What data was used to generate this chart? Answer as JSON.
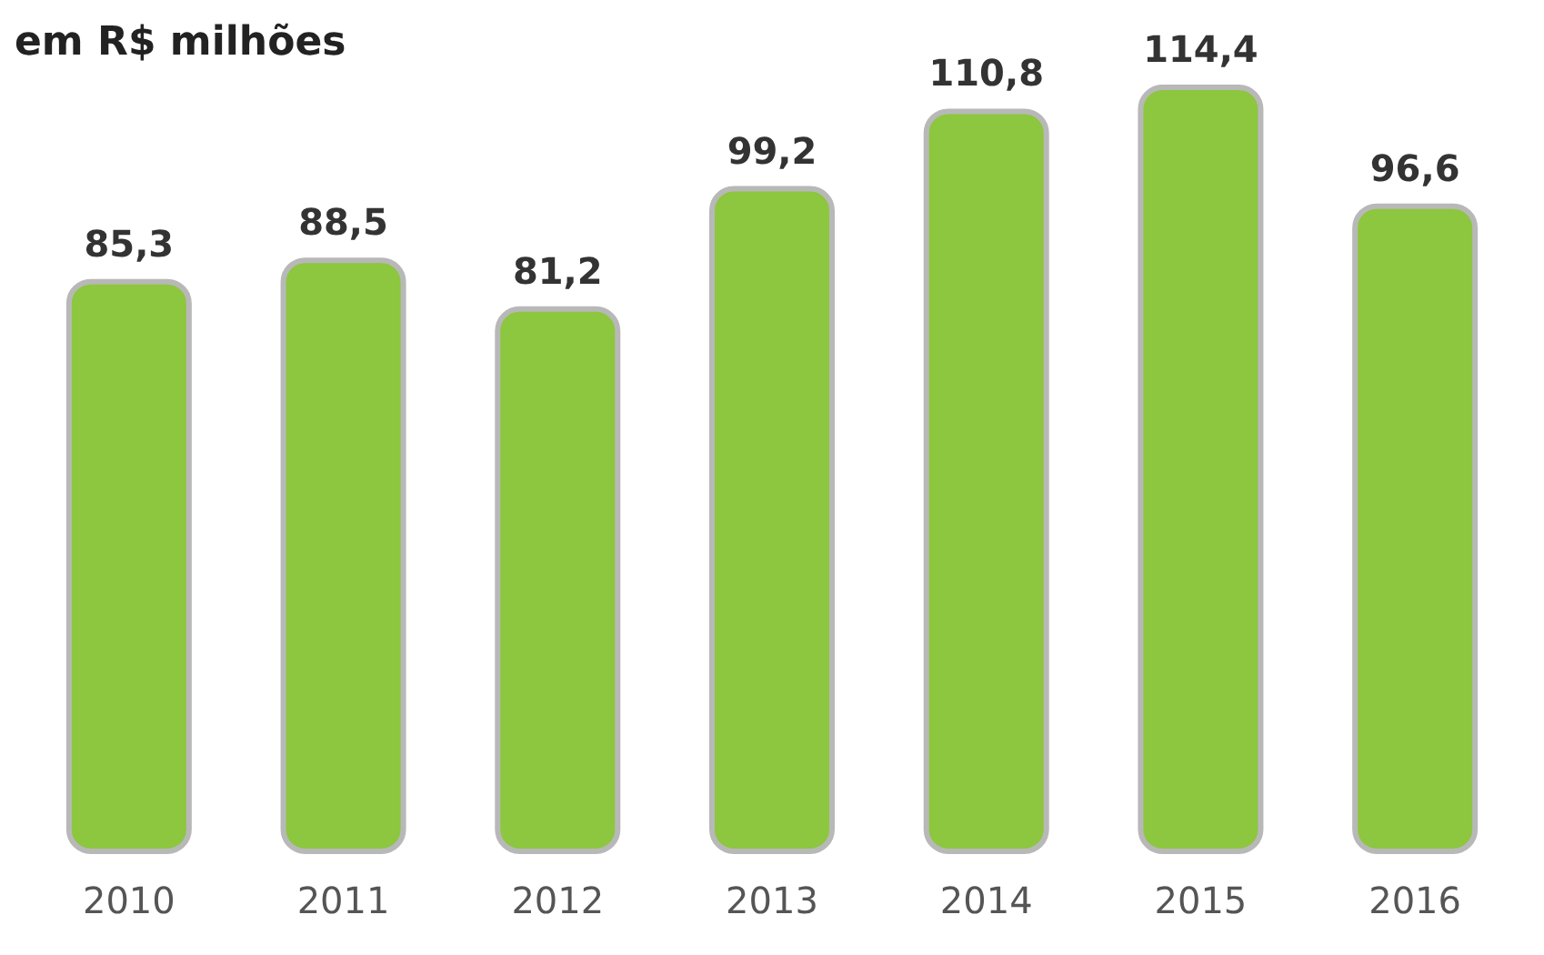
{
  "chart_data": {
    "type": "bar",
    "title": "em R$ milhões",
    "categories": [
      "2010",
      "2011",
      "2012",
      "2013",
      "2014",
      "2015",
      "2016"
    ],
    "values": [
      85.3,
      88.5,
      81.2,
      99.2,
      110.8,
      114.4,
      96.6
    ],
    "value_labels": [
      "85,3",
      "88,5",
      "81,2",
      "99,2",
      "110,8",
      "114,4",
      "96,6"
    ],
    "color": "#8dc63f"
  }
}
